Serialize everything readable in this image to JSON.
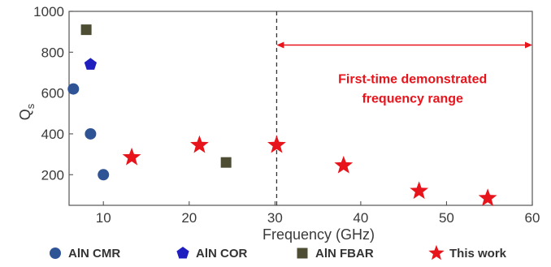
{
  "chart_data": {
    "type": "scatter",
    "xlabel": "Frequency (GHz)",
    "ylabel": "Q",
    "ylabel_sub": "s",
    "xlim": [
      6,
      60
    ],
    "ylim": [
      50,
      1000
    ],
    "xticks": [
      10,
      20,
      30,
      40,
      50,
      60
    ],
    "yticks": [
      200,
      400,
      600,
      800,
      1000
    ],
    "grid": false,
    "legend_position": "bottom",
    "series": [
      {
        "name": "AlN CMR",
        "marker": "circle",
        "color": "#2f5496",
        "points": [
          {
            "x": 6.5,
            "y": 620
          },
          {
            "x": 8.5,
            "y": 400
          },
          {
            "x": 10.0,
            "y": 200
          }
        ]
      },
      {
        "name": "AlN COR",
        "marker": "pentagon",
        "color": "#1f1fbf",
        "points": [
          {
            "x": 8.5,
            "y": 740
          }
        ]
      },
      {
        "name": "AlN FBAR",
        "marker": "square",
        "color": "#4d4d33",
        "points": [
          {
            "x": 8.0,
            "y": 910
          },
          {
            "x": 24.3,
            "y": 260
          }
        ]
      },
      {
        "name": "This work",
        "marker": "star",
        "color": "#e8141c",
        "points": [
          {
            "x": 13.3,
            "y": 285
          },
          {
            "x": 21.2,
            "y": 345
          },
          {
            "x": 30.2,
            "y": 345
          },
          {
            "x": 38.0,
            "y": 245
          },
          {
            "x": 46.8,
            "y": 120
          },
          {
            "x": 54.8,
            "y": 85
          }
        ]
      }
    ],
    "annotation": {
      "lines": [
        "First-time demonstrated",
        "frequency range"
      ],
      "color": "#e8141c",
      "vline_x": 30.2,
      "arrow_from_x": 30.2,
      "arrow_to_x": 60,
      "arrow_y": 835
    }
  }
}
